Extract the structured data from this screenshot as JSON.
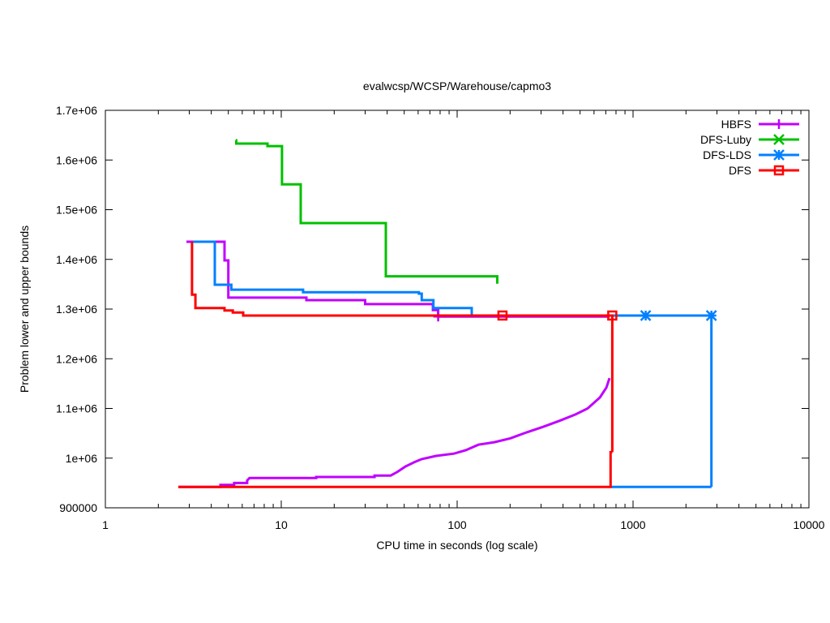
{
  "chart_data": {
    "type": "line",
    "title": "evalwcsp/WCSP/Warehouse/capmo3",
    "xlabel": "CPU time in seconds (log scale)",
    "ylabel": "Problem lower and upper bounds",
    "xscale": "log",
    "xlim": [
      1,
      10000
    ],
    "ylim": [
      900000,
      1700000
    ],
    "xticks": [
      1,
      10,
      100,
      1000,
      10000
    ],
    "xtick_labels": [
      "1",
      "10",
      "100",
      "1000",
      "10000"
    ],
    "yticks": [
      900000,
      1000000,
      1100000,
      1200000,
      1300000,
      1400000,
      1500000,
      1600000,
      1700000
    ],
    "ytick_labels": [
      "900000",
      "1e+06",
      "1.1e+06",
      "1.2e+06",
      "1.3e+06",
      "1.4e+06",
      "1.5e+06",
      "1.6e+06",
      "1.7e+06"
    ],
    "grid": false,
    "legend_position": "top-right",
    "series": [
      {
        "name": "HBFS",
        "color": "#c000ff",
        "marker": "plus",
        "upper": [
          [
            2.89,
            1435500
          ],
          [
            4.76,
            1435500
          ],
          [
            4.76,
            1398000
          ],
          [
            5.0,
            1398000
          ],
          [
            5.0,
            1323000
          ],
          [
            13.9,
            1323000
          ],
          [
            13.9,
            1318000
          ],
          [
            30,
            1318000
          ],
          [
            30,
            1310000
          ],
          [
            72.8,
            1310000
          ],
          [
            72.8,
            1298000
          ],
          [
            78,
            1298000
          ],
          [
            78,
            1285000
          ],
          [
            735,
            1285000
          ]
        ],
        "lower": [
          [
            2.6,
            942000
          ],
          [
            4.51,
            942000
          ],
          [
            4.51,
            946000
          ],
          [
            5.4,
            946000
          ],
          [
            5.4,
            950000
          ],
          [
            6.4,
            950000
          ],
          [
            6.4,
            955000
          ],
          [
            6.6,
            960000
          ],
          [
            15.8,
            960000
          ],
          [
            15.8,
            962000
          ],
          [
            33.9,
            962000
          ],
          [
            33.9,
            965000
          ],
          [
            41.9,
            965000
          ],
          [
            45.6,
            972000
          ],
          [
            50.7,
            983000
          ],
          [
            56.4,
            991000
          ],
          [
            62.7,
            998000
          ],
          [
            75.9,
            1004500
          ],
          [
            95.9,
            1009000
          ],
          [
            112,
            1016000
          ],
          [
            132,
            1027000
          ],
          [
            163,
            1032000
          ],
          [
            201,
            1040000
          ],
          [
            249,
            1052000
          ],
          [
            308,
            1063000
          ],
          [
            381,
            1075000
          ],
          [
            471,
            1088000
          ],
          [
            552,
            1100000
          ],
          [
            648,
            1122000
          ],
          [
            705,
            1142000
          ],
          [
            735,
            1161000
          ]
        ],
        "markers": [
          [
            78,
            1285000
          ]
        ]
      },
      {
        "name": "DFS-Luby",
        "color": "#00c000",
        "marker": "cross",
        "upper": [
          [
            5.5,
            1639600
          ],
          [
            5.55,
            1639600
          ],
          [
            5.55,
            1633000
          ],
          [
            8.35,
            1633000
          ],
          [
            8.35,
            1628000
          ],
          [
            10.1,
            1628000
          ],
          [
            10.1,
            1551000
          ],
          [
            12.9,
            1551000
          ],
          [
            12.9,
            1473000
          ],
          [
            39.3,
            1473000
          ],
          [
            39.3,
            1366000
          ],
          [
            169,
            1366000
          ],
          [
            169,
            1351000
          ]
        ],
        "lower": [],
        "markers": []
      },
      {
        "name": "DFS-LDS",
        "color": "#0080ff",
        "marker": "star",
        "upper": [
          [
            3.15,
            1435500
          ],
          [
            4.19,
            1435500
          ],
          [
            4.19,
            1349000
          ],
          [
            5.2,
            1349000
          ],
          [
            5.2,
            1339000
          ],
          [
            13.3,
            1339000
          ],
          [
            13.3,
            1334000
          ],
          [
            60.6,
            1334000
          ],
          [
            60.6,
            1331000
          ],
          [
            62.9,
            1331000
          ],
          [
            62.9,
            1318000
          ],
          [
            73.3,
            1318000
          ],
          [
            73.3,
            1302000
          ],
          [
            121,
            1302000
          ],
          [
            121,
            1287000
          ],
          [
            2790,
            1287000
          ],
          [
            2790,
            942000
          ]
        ],
        "lower": [
          [
            750,
            942000
          ],
          [
            2790,
            942000
          ]
        ],
        "markers": [
          [
            1180,
            1287000
          ],
          [
            2790,
            1287000
          ]
        ]
      },
      {
        "name": "DFS",
        "color": "#ff0000",
        "marker": "square",
        "upper": [
          [
            3.11,
            1435500
          ],
          [
            3.11,
            1329000
          ],
          [
            3.25,
            1329000
          ],
          [
            3.25,
            1302000
          ],
          [
            4.76,
            1302000
          ],
          [
            4.76,
            1297000
          ],
          [
            5.3,
            1297000
          ],
          [
            5.3,
            1293000
          ],
          [
            6.07,
            1293000
          ],
          [
            6.07,
            1287000
          ],
          [
            762,
            1287000
          ],
          [
            762,
            1012000
          ]
        ],
        "lower": [
          [
            2.6,
            942000
          ],
          [
            745,
            942000
          ],
          [
            745,
            1012000
          ],
          [
            762,
            1012000
          ]
        ],
        "markers": [
          [
            181,
            1287000
          ],
          [
            762,
            1287000
          ]
        ]
      }
    ]
  }
}
